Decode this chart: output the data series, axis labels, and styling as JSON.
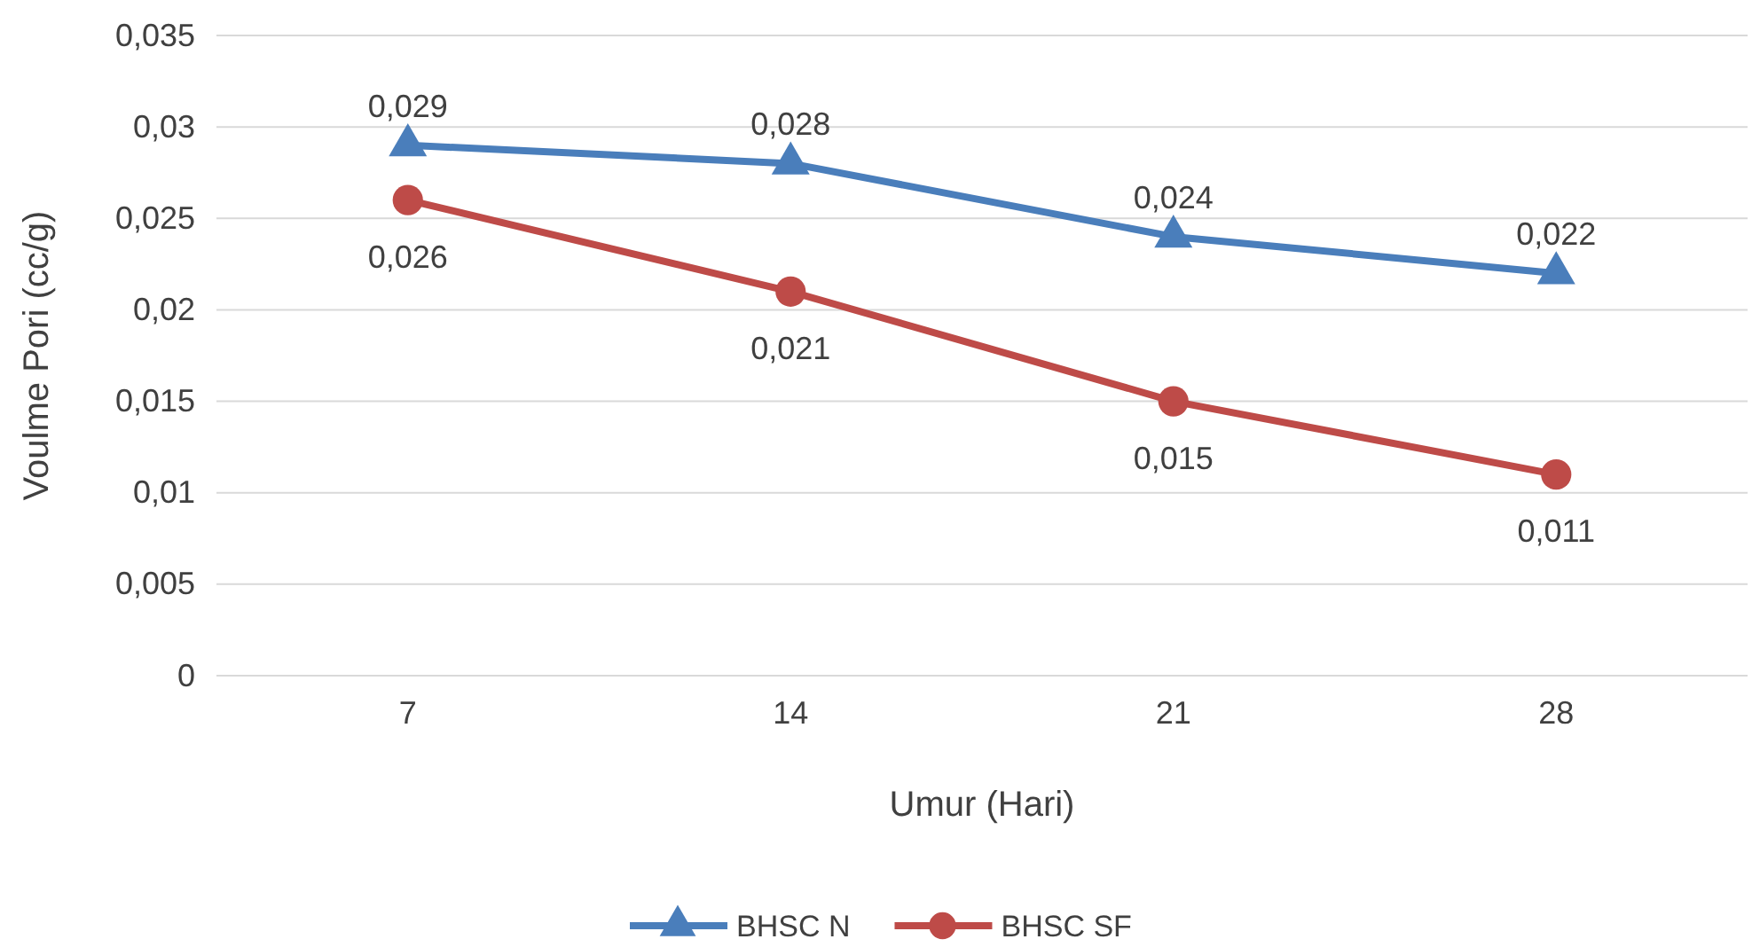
{
  "chart_data": {
    "type": "line",
    "xlabel": "Umur (Hari)",
    "ylabel": "Voulme Pori (cc/g)",
    "categories": [
      "7",
      "14",
      "21",
      "28"
    ],
    "ylim": [
      0,
      0.035
    ],
    "yticks": [
      {
        "value": 0,
        "label": "0"
      },
      {
        "value": 0.005,
        "label": "0,005"
      },
      {
        "value": 0.01,
        "label": "0,01"
      },
      {
        "value": 0.015,
        "label": "0,015"
      },
      {
        "value": 0.02,
        "label": "0,02"
      },
      {
        "value": 0.025,
        "label": "0,025"
      },
      {
        "value": 0.03,
        "label": "0,03"
      },
      {
        "value": 0.035,
        "label": "0,035"
      }
    ],
    "grid": "y",
    "legend": "bottom",
    "line_style": "solid",
    "series": [
      {
        "name": "BHSC N",
        "color": "#4a7ebb",
        "marker": "triangle",
        "values": [
          0.029,
          0.028,
          0.024,
          0.022
        ],
        "value_labels": [
          "0,029",
          "0,028",
          "0,024",
          "0,022"
        ]
      },
      {
        "name": "BHSC SF",
        "color": "#be4b48",
        "marker": "circle",
        "values": [
          0.026,
          0.021,
          0.015,
          0.011
        ],
        "value_labels": [
          "0,026",
          "0,021",
          "0,015",
          "0,011"
        ]
      }
    ]
  }
}
